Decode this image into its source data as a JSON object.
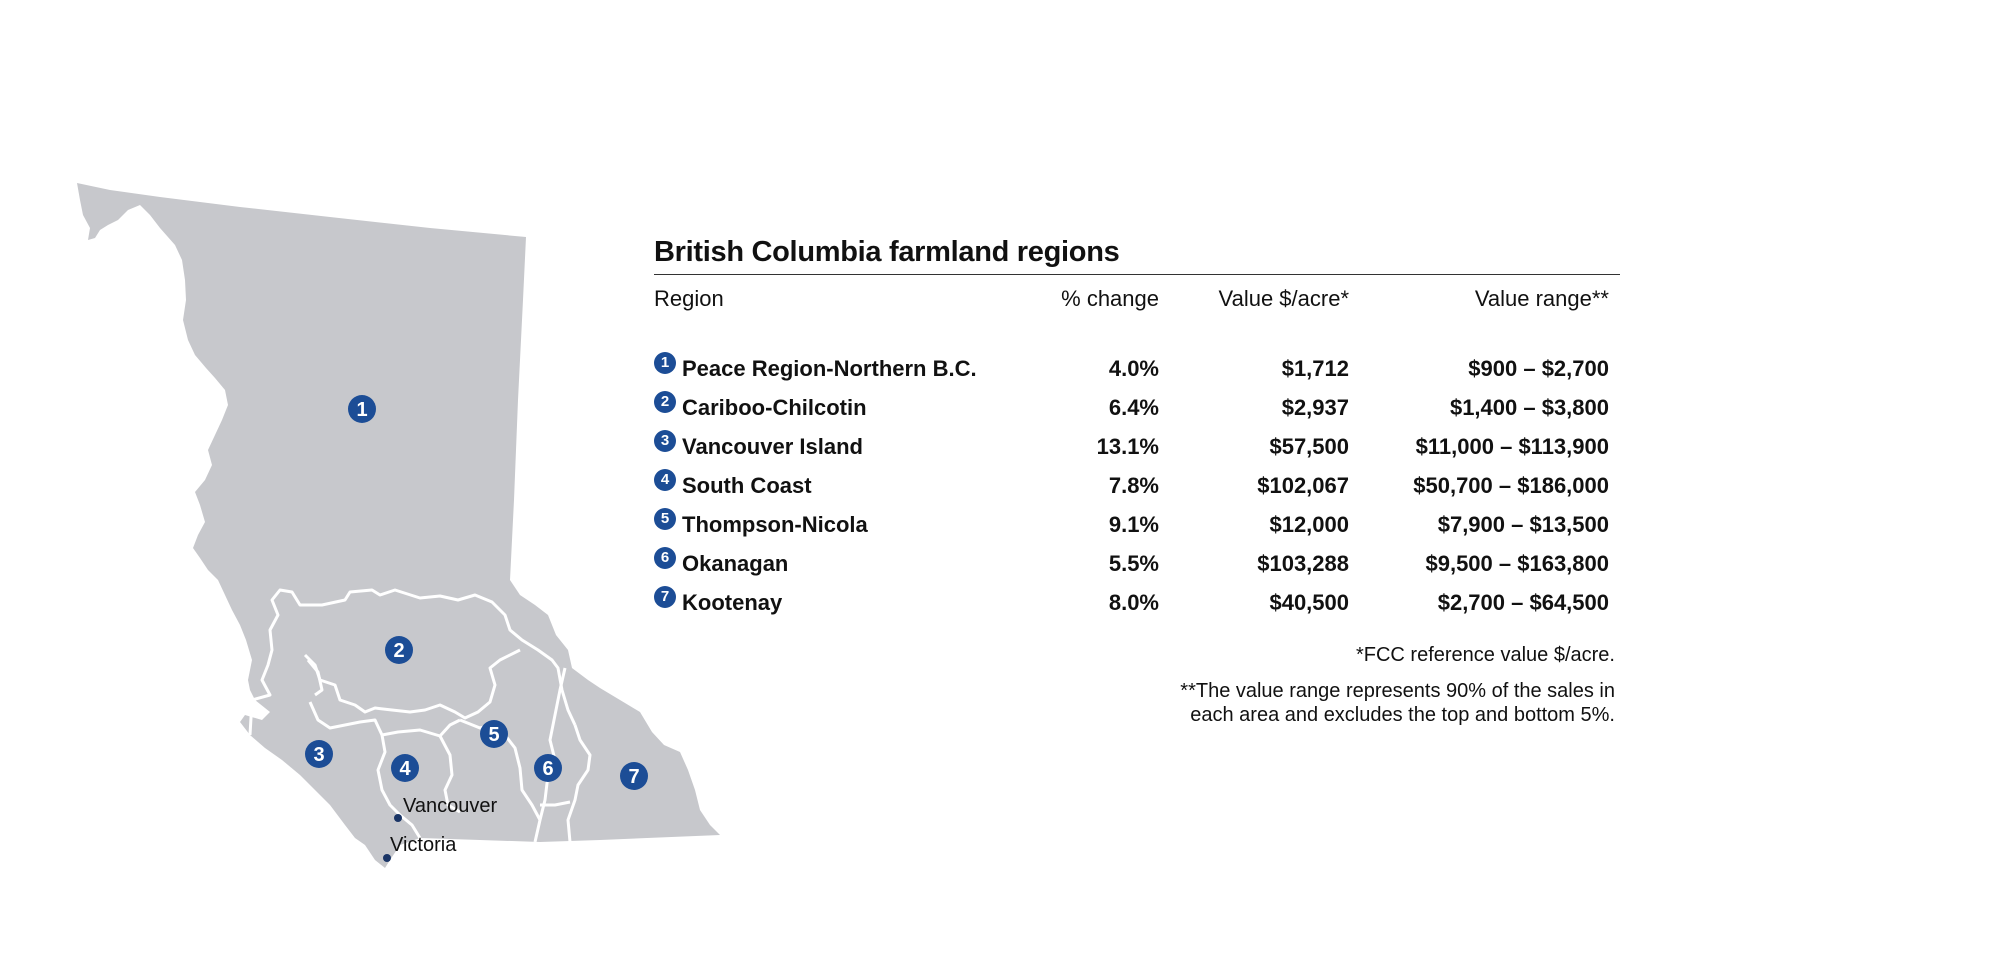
{
  "title": "British Columbia farmland regions",
  "columns": {
    "region": "Region",
    "change": "% change",
    "value": "Value $/acre*",
    "range": "Value range**"
  },
  "regions": [
    {
      "num": "1",
      "name": "Peace Region-Northern B.C.",
      "change": "4.0%",
      "value": "$1,712",
      "range": "$900 – $2,700"
    },
    {
      "num": "2",
      "name": "Cariboo-Chilcotin",
      "change": "6.4%",
      "value": "$2,937",
      "range": "$1,400 – $3,800"
    },
    {
      "num": "3",
      "name": "Vancouver Island",
      "change": "13.1%",
      "value": "$57,500",
      "range": "$11,000 – $113,900"
    },
    {
      "num": "4",
      "name": "South Coast",
      "change": "7.8%",
      "value": "$102,067",
      "range": "$50,700 – $186,000"
    },
    {
      "num": "5",
      "name": "Thompson-Nicola",
      "change": "9.1%",
      "value": "$12,000",
      "range": "$7,900 – $13,500"
    },
    {
      "num": "6",
      "name": "Okanagan",
      "change": "5.5%",
      "value": "$103,288",
      "range": "$9,500 – $163,800"
    },
    {
      "num": "7",
      "name": "Kootenay",
      "change": "8.0%",
      "value": "$40,500",
      "range": "$2,700 – $64,500"
    }
  ],
  "notes": {
    "note1": "*FCC reference value $/acre.",
    "note2_line1": "**The value range represents 90% of the sales in",
    "note2_line2": "each area and excludes the top and bottom 5%."
  },
  "map": {
    "markers": [
      "1",
      "2",
      "3",
      "4",
      "5",
      "6",
      "7"
    ],
    "cities": [
      "Vancouver",
      "Victoria"
    ]
  },
  "colors": {
    "land": "#c7c8cc",
    "borders": "#ffffff",
    "marker": "#1c4d96",
    "city_dot": "#1a3566"
  }
}
